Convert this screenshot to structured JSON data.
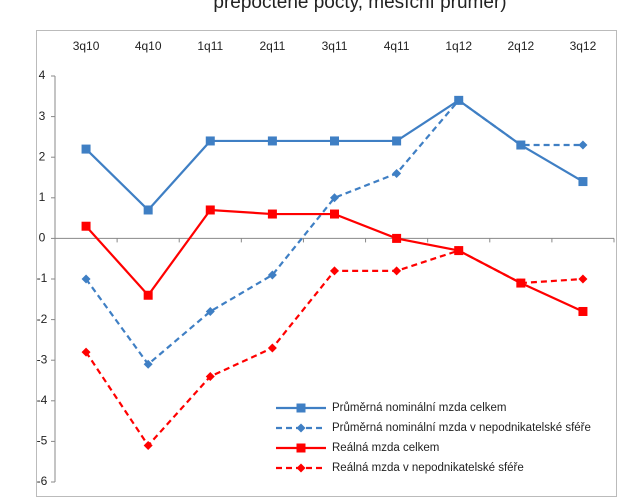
{
  "chart_data": {
    "type": "line",
    "title": "přepočtené počty, měsíční průměr)",
    "categories": [
      "3q10",
      "4q10",
      "1q11",
      "2q11",
      "3q11",
      "4q11",
      "1q12",
      "2q12",
      "3q12"
    ],
    "series": [
      {
        "name": "Průměrná nominální  mzda celkem",
        "color": "#3f7fc4",
        "dash": false,
        "marker": "square",
        "values": [
          2.2,
          0.7,
          2.4,
          2.4,
          2.4,
          2.4,
          3.4,
          2.3,
          1.4
        ]
      },
      {
        "name": "Průměrná nominální  mzda v nepodnikatelské  sféře",
        "color": "#3f7fc4",
        "dash": true,
        "marker": "diamond",
        "values": [
          -1.0,
          -3.1,
          -1.8,
          -0.9,
          1.0,
          1.6,
          3.4,
          2.3,
          2.3
        ]
      },
      {
        "name": "Reálná mzda celkem",
        "color": "#ff0000",
        "dash": false,
        "marker": "square",
        "values": [
          0.3,
          -1.4,
          0.7,
          0.6,
          0.6,
          0.0,
          -0.3,
          -1.1,
          -1.8
        ]
      },
      {
        "name": "Reálná mzda v nepodnikatelské  sféře",
        "color": "#ff0000",
        "dash": true,
        "marker": "diamond",
        "values": [
          -2.8,
          -5.1,
          -3.4,
          -2.7,
          -0.8,
          -0.8,
          -0.3,
          -1.1,
          -1.0
        ]
      }
    ],
    "ylim": [
      -6,
      4
    ],
    "yticks": [
      4,
      3,
      2,
      1,
      0,
      -1,
      -2,
      -3,
      -4,
      -5,
      -6
    ],
    "legend": "bottom-right"
  }
}
